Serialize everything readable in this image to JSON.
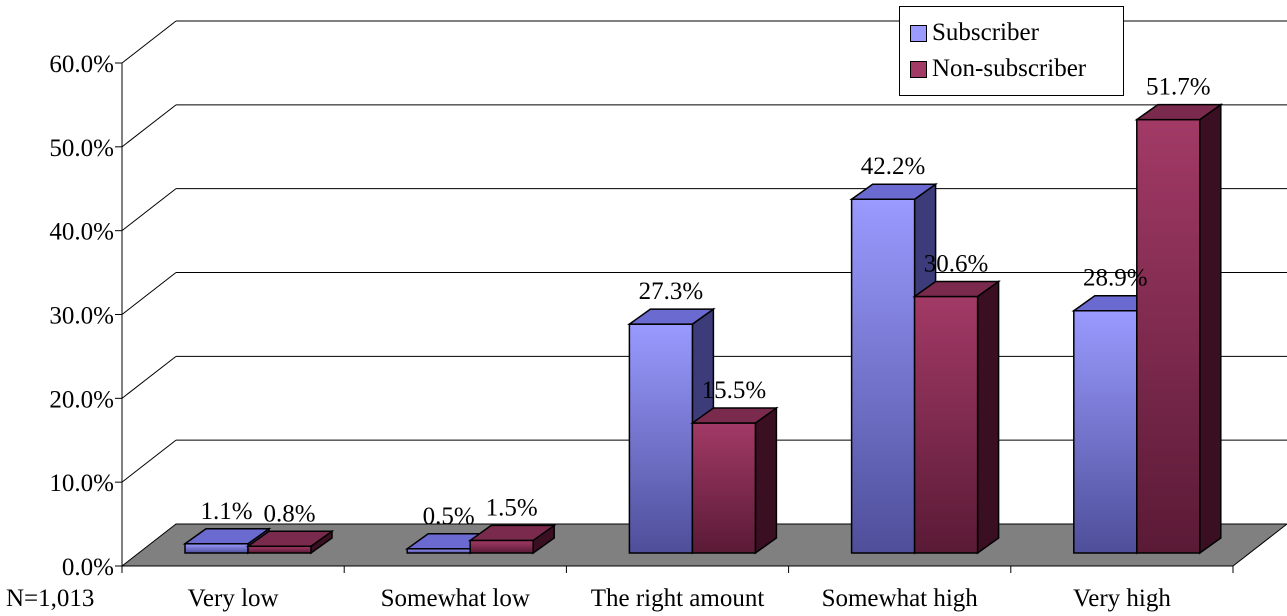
{
  "chart_data": {
    "type": "bar",
    "categories": [
      "Very low",
      "Somewhat low",
      "The right amount",
      "Somewhat high",
      "Very high"
    ],
    "series": [
      {
        "name": "Subscriber",
        "values": [
          1.1,
          0.5,
          27.3,
          42.2,
          28.9
        ],
        "labels": [
          "1.1%",
          "0.5%",
          "27.3%",
          "42.2%",
          "28.9%"
        ]
      },
      {
        "name": "Non-subscriber",
        "values": [
          0.8,
          1.5,
          15.5,
          30.6,
          51.7
        ],
        "labels": [
          "0.8%",
          "1.5%",
          "15.5%",
          "30.6%",
          "51.7%"
        ]
      }
    ],
    "yticks": [
      "0.0%",
      "10.0%",
      "20.0%",
      "30.0%",
      "40.0%",
      "50.0%",
      "60.0%"
    ],
    "ylim": [
      0,
      60
    ],
    "note": "N=1,013",
    "legend_position": "top-right",
    "grid": true,
    "three_d": true,
    "colors": {
      "subscriber_front_light": "#9a9aff",
      "subscriber_front_dark": "#4e4e9a",
      "subscriber_top": "#6a6ad0",
      "subscriber_side": "#3c3c7a",
      "nonsub_front_light": "#a23a66",
      "nonsub_front_dark": "#5a1a36",
      "nonsub_top": "#7a2a4c",
      "nonsub_side": "#3a0f22",
      "floor": "#808080"
    }
  }
}
